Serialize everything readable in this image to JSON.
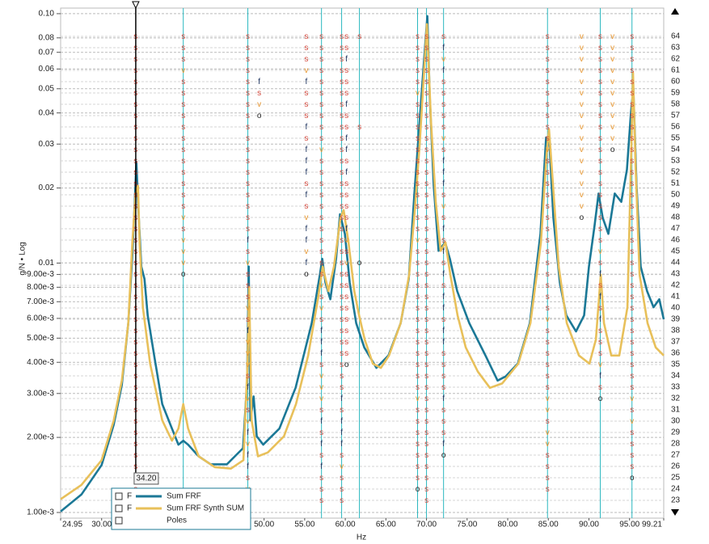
{
  "chart_data": {
    "type": "line",
    "x_label": "Hz",
    "y_label": "g/N • Log",
    "log_y": true,
    "grid": true,
    "xlim": [
      24.95,
      99.21
    ],
    "xticks": [
      24.95,
      {
        "value": 30,
        "label": "30.00"
      },
      {
        "value": 35,
        "label": "35.00"
      },
      {
        "value": 40,
        "label": "40.00"
      },
      {
        "value": 45,
        "label": "45.00"
      },
      {
        "value": 50,
        "label": "50.00"
      },
      {
        "value": 55,
        "label": "55.00"
      },
      {
        "value": 60,
        "label": "60.00"
      },
      {
        "value": 65,
        "label": "65.00"
      },
      {
        "value": 70,
        "label": "70.00"
      },
      {
        "value": 75,
        "label": "75.00"
      },
      {
        "value": 80,
        "label": "80.00"
      },
      {
        "value": 85,
        "label": "85.00"
      },
      {
        "value": 90,
        "label": "90.00"
      },
      {
        "value": 95,
        "label": "95.00"
      },
      99.21
    ],
    "ylim": [
      0.000949,
      0.1053
    ],
    "yticks": [
      {
        "value": 0.1,
        "label": "0.10"
      },
      0.08,
      0.07,
      0.06,
      0.05,
      0.04,
      0.03,
      0.02,
      0.01,
      {
        "value": 0.009,
        "label": "9.00e-3"
      },
      {
        "value": 0.008,
        "label": "8.00e-3"
      },
      {
        "value": 0.007,
        "label": "7.00e-3"
      },
      {
        "value": 0.006,
        "label": "6.00e-3"
      },
      {
        "value": 0.005,
        "label": "5.00e-3"
      },
      {
        "value": 0.004,
        "label": "4.00e-3"
      },
      {
        "value": 0.003,
        "label": "3.00e-3"
      },
      {
        "value": 0.002,
        "label": "2.00e-3"
      },
      {
        "value": 0.001,
        "label": "1.00e-3"
      }
    ],
    "y2lim": [
      21.43,
      66.5
    ],
    "y2ticks": [
      23,
      24,
      25,
      26,
      27,
      28,
      29,
      30,
      31,
      32,
      33,
      34,
      35,
      36,
      37,
      38,
      39,
      40,
      41,
      42,
      43,
      44,
      45,
      46,
      47,
      48,
      49,
      50,
      51,
      52,
      53,
      54,
      55,
      56,
      57,
      58,
      59,
      60,
      61,
      62,
      63,
      64
    ],
    "cursor": {
      "value": 34.2,
      "label": "34.20"
    },
    "series": [
      {
        "name": "Sum FRF",
        "legend_flag": "F",
        "color": "#1b7896",
        "x": [
          24.95,
          27.51,
          30.0,
          31.49,
          32.49,
          33.28,
          33.78,
          34.08,
          34.28,
          34.48,
          34.88,
          35.27,
          35.67,
          36.47,
          37.46,
          38.66,
          39.45,
          40.05,
          40.65,
          41.94,
          43.43,
          45.42,
          47.41,
          47.91,
          48.11,
          48.31,
          48.71,
          49.1,
          49.9,
          51.89,
          53.88,
          55.87,
          56.87,
          57.16,
          57.56,
          58.16,
          58.86,
          59.35,
          59.95,
          60.55,
          61.34,
          62.34,
          63.83,
          65.32,
          66.82,
          67.81,
          68.51,
          69.3,
          69.8,
          70.1,
          70.4,
          70.89,
          71.49,
          72.29,
          72.88,
          73.78,
          75.27,
          77.26,
          78.75,
          79.75,
          81.24,
          82.73,
          84.03,
          84.73,
          85.12,
          85.62,
          86.42,
          87.21,
          88.41,
          89.4,
          90.0,
          90.69,
          91.19,
          91.69,
          92.39,
          93.18,
          93.98,
          94.68,
          95.17,
          95.47,
          95.87,
          96.37,
          97.16,
          97.96,
          98.66,
          99.21
        ],
        "values": [
          0.00101,
          0.00118,
          0.00155,
          0.00225,
          0.00325,
          0.00574,
          0.0108,
          0.0176,
          0.0255,
          0.0176,
          0.00968,
          0.00864,
          0.00617,
          0.00426,
          0.00272,
          0.00217,
          0.00187,
          0.00194,
          0.00187,
          0.00168,
          0.00156,
          0.00156,
          0.00181,
          0.00338,
          0.00968,
          0.00234,
          0.00292,
          0.00202,
          0.00187,
          0.00217,
          0.00316,
          0.00574,
          0.00899,
          0.0104,
          0.00834,
          0.00716,
          0.0104,
          0.0157,
          0.0131,
          0.00834,
          0.00574,
          0.00459,
          0.0038,
          0.00426,
          0.00574,
          0.00864,
          0.019,
          0.043,
          0.0725,
          0.0978,
          0.0464,
          0.0204,
          0.0112,
          0.0121,
          0.0104,
          0.00772,
          0.00574,
          0.00426,
          0.00338,
          0.00351,
          0.00395,
          0.00574,
          0.0131,
          0.0319,
          0.0308,
          0.0152,
          0.00834,
          0.00617,
          0.00532,
          0.00617,
          0.00968,
          0.0141,
          0.019,
          0.0152,
          0.0131,
          0.019,
          0.0176,
          0.0237,
          0.0399,
          0.05,
          0.0204,
          0.00968,
          0.00772,
          0.00665,
          0.00716,
          0.00595
        ]
      },
      {
        "name": "Sum FRF Synth SUM",
        "legend_flag": "F",
        "color": "#e8c05a",
        "x": [
          24.95,
          27.51,
          30.0,
          31.49,
          32.49,
          33.28,
          33.78,
          34.18,
          34.48,
          34.68,
          35.07,
          35.97,
          37.46,
          38.66,
          39.45,
          40.05,
          40.65,
          41.94,
          43.93,
          45.92,
          47.46,
          47.96,
          48.16,
          48.46,
          49.25,
          50.45,
          52.44,
          53.93,
          55.43,
          56.62,
          57.22,
          57.92,
          58.61,
          59.41,
          59.8,
          60.4,
          61.1,
          61.7,
          62.39,
          63.39,
          64.38,
          65.38,
          66.82,
          67.86,
          68.56,
          69.15,
          69.75,
          70.05,
          70.55,
          71.14,
          71.74,
          72.34,
          72.93,
          73.83,
          74.83,
          76.32,
          77.81,
          79.31,
          81.3,
          82.8,
          84.09,
          84.79,
          85.08,
          85.58,
          86.28,
          87.27,
          88.77,
          90.06,
          90.86,
          91.46,
          91.85,
          92.75,
          93.74,
          94.74,
          95.23,
          95.43,
          95.73,
          96.23,
          97.22,
          98.22,
          99.21
        ],
        "values": [
          0.00113,
          0.00129,
          0.00162,
          0.00234,
          0.00338,
          0.00574,
          0.0121,
          0.019,
          0.0204,
          0.0121,
          0.00665,
          0.00395,
          0.00234,
          0.00194,
          0.00217,
          0.00272,
          0.00217,
          0.00168,
          0.00152,
          0.0015,
          0.00162,
          0.00395,
          0.00802,
          0.00234,
          0.00168,
          0.00174,
          0.00202,
          0.00272,
          0.00426,
          0.00716,
          0.00968,
          0.00772,
          0.00968,
          0.0152,
          0.0163,
          0.0121,
          0.00772,
          0.00617,
          0.00494,
          0.00395,
          0.0038,
          0.00426,
          0.00574,
          0.00899,
          0.0163,
          0.0296,
          0.0625,
          0.0908,
          0.0371,
          0.0176,
          0.0112,
          0.0121,
          0.00899,
          0.00617,
          0.00459,
          0.00367,
          0.00316,
          0.00329,
          0.00395,
          0.00574,
          0.0121,
          0.0275,
          0.0344,
          0.0204,
          0.00968,
          0.00574,
          0.00426,
          0.00395,
          0.00494,
          0.00899,
          0.00574,
          0.00426,
          0.00426,
          0.00665,
          0.0296,
          0.058,
          0.0255,
          0.00899,
          0.00574,
          0.00459,
          0.00426
        ]
      }
    ],
    "poles": {
      "name": "Poles",
      "line_color": "#2bb8c0",
      "letter_colors": {
        "s": "#d4483c",
        "v": "#e8962e",
        "f": "#1f3560",
        "o": "#222222"
      },
      "columns": [
        {
          "x": 34.18,
          "line": false,
          "markers": "ssssssssssssssssssssssssssssssssssssssssss"
        },
        {
          "x": 40.05,
          "line": true,
          "markers": "sssvssssssssssssvsvvvo"
        },
        {
          "x": 48.0,
          "line": true,
          "markers": "ssssssssssssssssssfsvsssvsfvvvsfvsvfvffsvs"
        },
        {
          "x": 49.4,
          "line": false,
          "markers": "    fsvo"
        },
        {
          "x": 55.2,
          "line": false,
          "markers": "sssvfsssfsfffsfsvffvfo"
        },
        {
          "x": 57.07,
          "line": true,
          "markers": "ssssssssssvsssssssssssvsvsfffsvvvsfsfsfsss"
        },
        {
          "x": 59.55,
          "line": true,
          "markers": "ssssssssssssssssssssssssssssssssfsfffsvsss"
        },
        {
          "x": 60.15,
          "line": false,
          "markers": "ssfsssfssffsfssssfvsvsssssssso"
        },
        {
          "x": 61.74,
          "line": true,
          "markers": "s       s           o"
        },
        {
          "x": 68.9,
          "line": true,
          "markers": "sssssvssssssssssssvsssssssssssssvssssssso"
        },
        {
          "x": 70.0,
          "line": true,
          "markers": "ssssssssssssssssssssssssssssssssssssssssss"
        },
        {
          "x": 72.1,
          "line": true,
          "markers": "sfvfsssssvsfffsvsfsfsfsffsffssssfsssfo"
        },
        {
          "x": 84.9,
          "line": true,
          "markers": "ssssssssssvssssssssssssssvssssssvvsvvssss"
        },
        {
          "x": 89.1,
          "line": false,
          "markers": "vvvvvvvvvvvvvvvvo"
        },
        {
          "x": 91.4,
          "line": true,
          "markers": "sssssssssssssssssssvsfsfsfsssvfso"
        },
        {
          "x": 92.9,
          "line": false,
          "markers": "vvvvvvvvvvo"
        },
        {
          "x": 95.3,
          "line": true,
          "markers": "ssssssssssssssssssssssssssssssssvsvsssso"
        }
      ]
    }
  }
}
